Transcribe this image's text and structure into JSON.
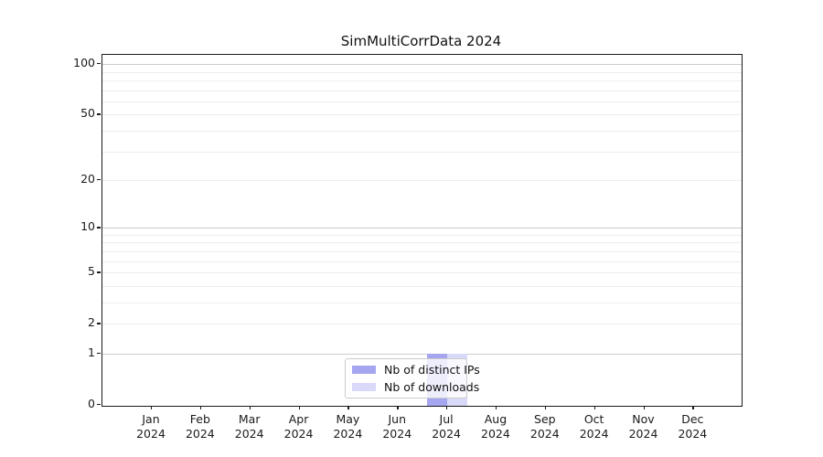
{
  "title": "SimMultiCorrData 2024",
  "legend": {
    "entries": [
      {
        "label": "Nb of distinct IPs",
        "color": "#a5a5f0"
      },
      {
        "label": "Nb of downloads",
        "color": "#d9d9fa"
      }
    ]
  },
  "chart_data": {
    "type": "bar",
    "title": "SimMultiCorrData 2024",
    "categories": [
      "Jan",
      "Feb",
      "Mar",
      "Apr",
      "May",
      "Jun",
      "Jul",
      "Aug",
      "Sep",
      "Oct",
      "Nov",
      "Dec"
    ],
    "category_year": "2024",
    "series": [
      {
        "name": "Nb of distinct IPs",
        "color": "#a5a5f0",
        "values": [
          0,
          0,
          0,
          0,
          0,
          0,
          1,
          0,
          0,
          0,
          0,
          0
        ]
      },
      {
        "name": "Nb of downloads",
        "color": "#d9d9fa",
        "values": [
          0,
          0,
          0,
          0,
          0,
          0,
          1,
          0,
          0,
          0,
          0,
          0
        ]
      }
    ],
    "yscale": "log1p",
    "ytick_labels": [
      0,
      1,
      2,
      5,
      10,
      20,
      50,
      100
    ],
    "yticks_major": [
      1,
      10,
      100
    ],
    "yticks_minor": [
      2,
      3,
      4,
      5,
      6,
      7,
      8,
      9,
      20,
      30,
      40,
      50,
      60,
      70,
      80,
      90
    ],
    "ylim": [
      0,
      113
    ],
    "grid": "horizontal major+minor, light gray",
    "legend_position": "inside bottom-center",
    "xlabel": "",
    "ylabel": ""
  }
}
